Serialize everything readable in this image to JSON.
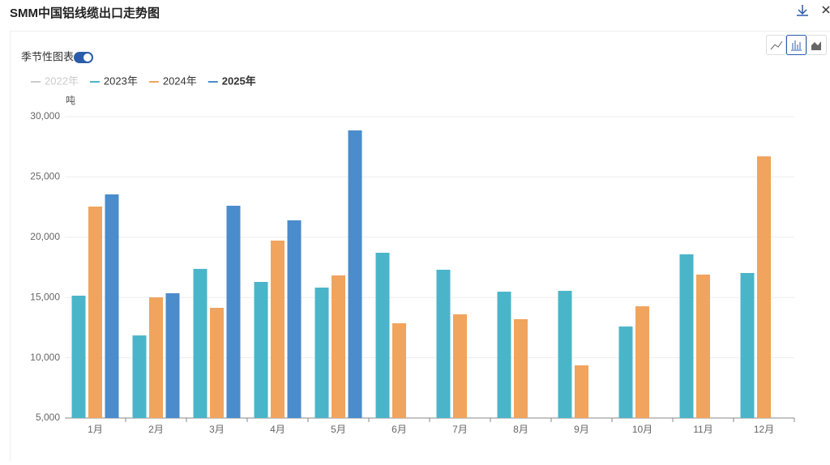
{
  "header": {
    "title": "SMM中国铝线缆出口走势图",
    "toggle_label": "季节性图表"
  },
  "chart_data": {
    "type": "bar",
    "y_label": "吨",
    "categories": [
      "1月",
      "2月",
      "3月",
      "4月",
      "5月",
      "6月",
      "7月",
      "8月",
      "9月",
      "10月",
      "11月",
      "12月"
    ],
    "series": [
      {
        "name": "2022年",
        "color": "#cccccc",
        "visible": false,
        "values": [
          null,
          null,
          null,
          null,
          null,
          null,
          null,
          null,
          null,
          null,
          null,
          null
        ]
      },
      {
        "name": "2023年",
        "color": "#4ab5c9",
        "visible": true,
        "values": [
          15150,
          11850,
          17370,
          16290,
          15820,
          18710,
          17300,
          15480,
          15550,
          12590,
          18580,
          17030
        ]
      },
      {
        "name": "2024年",
        "color": "#f0a45d",
        "visible": true,
        "values": [
          22540,
          15010,
          14140,
          19720,
          16830,
          12860,
          13600,
          13200,
          9370,
          14270,
          16900,
          26710
        ]
      },
      {
        "name": "2025年",
        "color": "#4a8ccc",
        "visible": true,
        "values": [
          23550,
          15350,
          22610,
          21400,
          28860,
          null,
          null,
          null,
          null,
          null,
          null,
          null
        ]
      }
    ],
    "ylim": [
      5000,
      30000
    ],
    "yticks": [
      {
        "value": 5000,
        "label": "5,000"
      },
      {
        "value": 10000,
        "label": "10,000"
      },
      {
        "value": 15000,
        "label": "15,000"
      },
      {
        "value": 20000,
        "label": "20,000"
      },
      {
        "value": 25000,
        "label": "25,000"
      },
      {
        "value": 30000,
        "label": "30,000"
      }
    ],
    "grid": true
  }
}
